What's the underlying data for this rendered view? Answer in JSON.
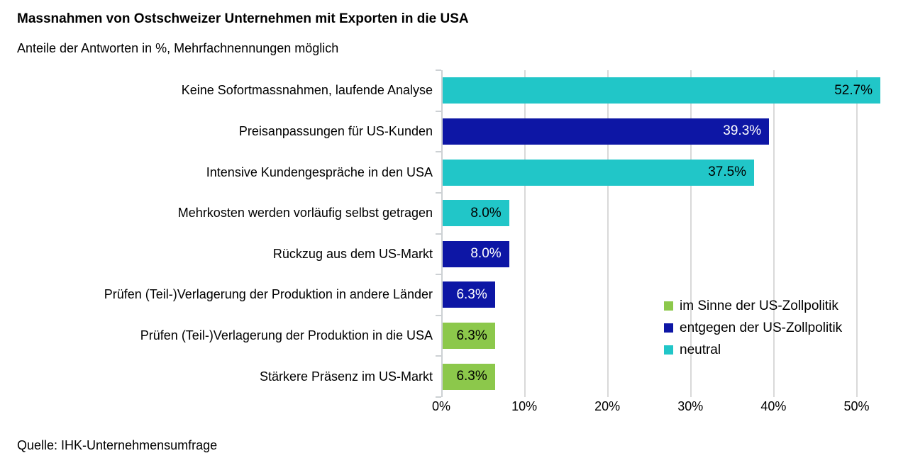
{
  "header": {
    "title": "Massnahmen von Ostschweizer Unternehmen mit Exporten in die USA",
    "subtitle": "Anteile der Antworten in %, Mehrfachnennungen möglich"
  },
  "footer": {
    "source": "Quelle: IHK-Unternehmensumfrage"
  },
  "colors": {
    "im_sinne": "#8cc84b",
    "entgegen": "#0d16a5",
    "neutral": "#21c6c8",
    "gridline": "#d9d9d9",
    "axis": "#cdd1d4",
    "text": "#000000"
  },
  "chart_data": {
    "type": "bar",
    "orientation": "horizontal",
    "title": "Massnahmen von Ostschweizer Unternehmen mit Exporten in die USA",
    "subtitle": "Anteile der Antworten in %, Mehrfachnennungen möglich",
    "categories": [
      "Keine Sofortmassnahmen, laufende Analyse",
      "Preisanpassungen für US-Kunden",
      "Intensive Kundengespräche in den USA",
      "Mehrkosten werden vorläufig selbst getragen",
      "Rückzug aus dem US-Markt",
      "Prüfen (Teil-)Verlagerung der Produktion in andere Länder",
      "Prüfen (Teil-)Verlagerung der Produktion in die USA",
      "Stärkere Präsenz im US-Markt"
    ],
    "values": [
      52.7,
      39.3,
      37.5,
      8.0,
      8.0,
      6.3,
      6.3,
      6.3
    ],
    "value_labels": [
      "52.7%",
      "39.3%",
      "37.5%",
      "8.0%",
      "8.0%",
      "6.3%",
      "6.3%",
      "6.3%"
    ],
    "series_of_category": [
      "neutral",
      "entgegen",
      "neutral",
      "neutral",
      "entgegen",
      "entgegen",
      "im_sinne",
      "im_sinne"
    ],
    "value_label_text_color": {
      "neutral": "#000000",
      "entgegen": "#ffffff",
      "im_sinne": "#000000"
    },
    "xlabel": "",
    "ylabel": "",
    "xlim": [
      0,
      55
    ],
    "x_tick_values": [
      0,
      10,
      20,
      30,
      40,
      50
    ],
    "x_tick_labels": [
      "0%",
      "10%",
      "20%",
      "30%",
      "40%",
      "50%"
    ],
    "grid": true,
    "legend_position": "right-middle",
    "legend": [
      {
        "key": "im_sinne",
        "label": "im Sinne der US-Zollpolitik"
      },
      {
        "key": "entgegen",
        "label": "entgegen der US-Zollpolitik"
      },
      {
        "key": "neutral",
        "label": "neutral"
      }
    ]
  }
}
